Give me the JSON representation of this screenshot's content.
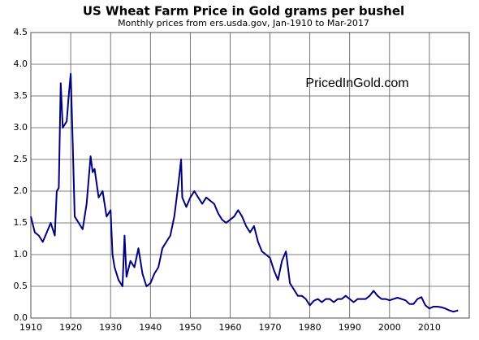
{
  "chart_data": {
    "type": "line",
    "title": "US Wheat Farm Price in Gold grams per bushel",
    "subtitle": "Monthly prices from ers.usda.gov, Jan-1910 to Mar-2017",
    "annotation": "PricedInGold.com",
    "x": [
      1910,
      1911,
      1912,
      1913,
      1914,
      1915,
      1915.5,
      1916,
      1916.5,
      1917,
      1917.5,
      1918,
      1919,
      1919.5,
      1920,
      1920.5,
      1921,
      1922,
      1923,
      1924,
      1925,
      1925.5,
      1926,
      1927,
      1928,
      1929,
      1930,
      1930.5,
      1931,
      1932,
      1933,
      1933.5,
      1934,
      1935,
      1936,
      1937,
      1938,
      1939,
      1940,
      1941,
      1942,
      1943,
      1944,
      1945,
      1946,
      1947,
      1947.7,
      1948,
      1949,
      1950,
      1951,
      1952,
      1953,
      1954,
      1955,
      1956,
      1957,
      1958,
      1959,
      1960,
      1961,
      1962,
      1963,
      1964,
      1965,
      1966,
      1967,
      1968,
      1969,
      1970,
      1971,
      1972,
      1973,
      1974,
      1975,
      1976,
      1977,
      1978,
      1979,
      1980,
      1981,
      1982,
      1983,
      1984,
      1985,
      1986,
      1987,
      1988,
      1989,
      1990,
      1991,
      1992,
      1993,
      1994,
      1995,
      1996,
      1997,
      1998,
      1999,
      2000,
      2001,
      2002,
      2003,
      2004,
      2005,
      2006,
      2007,
      2008,
      2009,
      2010,
      2011,
      2012,
      2013,
      2014,
      2015,
      2016,
      2017.2
    ],
    "series": [
      {
        "name": "Wheat price in gold grams",
        "color": "#000080",
        "values": [
          1.6,
          1.35,
          1.3,
          1.2,
          1.35,
          1.5,
          1.4,
          1.3,
          2.0,
          2.05,
          3.7,
          3.0,
          3.1,
          3.5,
          3.85,
          2.8,
          1.6,
          1.5,
          1.4,
          1.8,
          2.55,
          2.3,
          2.35,
          1.9,
          2.0,
          1.6,
          1.7,
          1.0,
          0.8,
          0.6,
          0.5,
          1.3,
          0.65,
          0.9,
          0.8,
          1.1,
          0.7,
          0.5,
          0.55,
          0.7,
          0.8,
          1.1,
          1.2,
          1.3,
          1.6,
          2.1,
          2.5,
          1.9,
          1.75,
          1.9,
          2.0,
          1.9,
          1.8,
          1.9,
          1.85,
          1.8,
          1.65,
          1.55,
          1.5,
          1.55,
          1.6,
          1.7,
          1.6,
          1.45,
          1.35,
          1.45,
          1.2,
          1.05,
          1.0,
          0.95,
          0.75,
          0.6,
          0.9,
          1.05,
          0.55,
          0.45,
          0.35,
          0.35,
          0.3,
          0.2,
          0.27,
          0.3,
          0.25,
          0.3,
          0.3,
          0.25,
          0.3,
          0.3,
          0.35,
          0.3,
          0.25,
          0.3,
          0.3,
          0.3,
          0.35,
          0.43,
          0.35,
          0.3,
          0.3,
          0.28,
          0.3,
          0.32,
          0.3,
          0.28,
          0.22,
          0.22,
          0.3,
          0.33,
          0.2,
          0.15,
          0.18,
          0.18,
          0.17,
          0.15,
          0.12,
          0.1,
          0.12
        ]
      }
    ],
    "xlim": [
      1910,
      2020
    ],
    "xticks": [
      1910,
      1920,
      1930,
      1940,
      1950,
      1960,
      1970,
      1980,
      1990,
      2000,
      2010
    ],
    "ylim": [
      0,
      4.5
    ],
    "yticks": [
      {
        "value": 0,
        "label": "0.0"
      },
      0.5,
      {
        "value": 1,
        "label": "1.0"
      },
      1.5,
      {
        "value": 2,
        "label": "2.0"
      },
      2.5,
      {
        "value": 3,
        "label": "3.0"
      },
      3.5,
      {
        "value": 4,
        "label": "4.0"
      },
      4.5
    ],
    "grid": true
  }
}
